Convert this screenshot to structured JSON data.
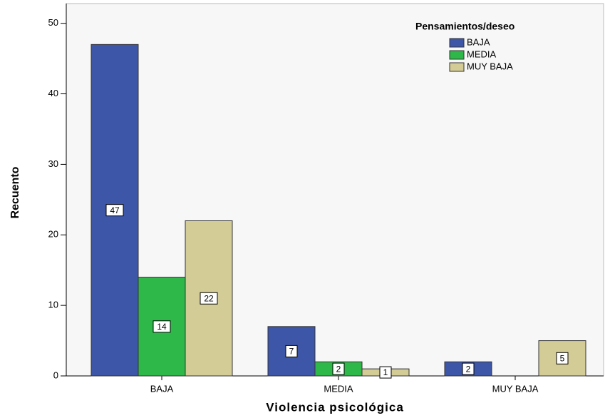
{
  "chart_data": {
    "type": "bar",
    "categories": [
      "BAJA",
      "MEDIA",
      "MUY BAJA"
    ],
    "series": [
      {
        "name": "BAJA",
        "color": "#3d56a8",
        "values": [
          47,
          7,
          2
        ]
      },
      {
        "name": "MEDIA",
        "color": "#2fb84a",
        "values": [
          14,
          2,
          null
        ]
      },
      {
        "name": "MUY BAJA",
        "color": "#d4cc96",
        "values": [
          22,
          1,
          5
        ]
      }
    ],
    "legend_title": "Pensamientos/deseo",
    "x_label": "Violencia psicológica",
    "y_label": "Recuento",
    "ylim": [
      0,
      52.8
    ],
    "yticks": [
      0,
      10,
      20,
      30,
      40,
      50
    ],
    "legend": "upper right"
  }
}
